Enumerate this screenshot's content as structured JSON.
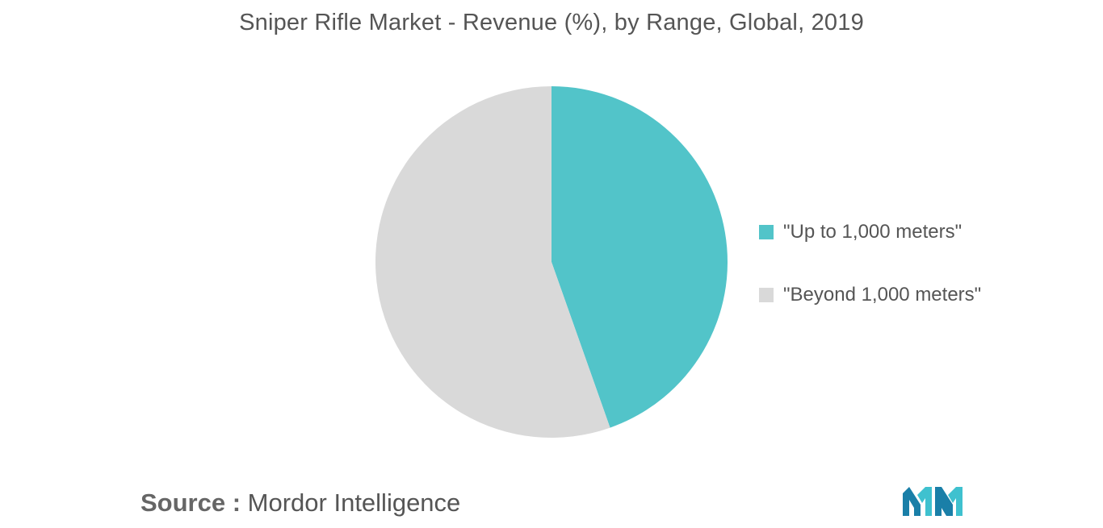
{
  "chart_data": {
    "type": "pie",
    "title": "Sniper Rifle Market - Revenue (%), by Range, Global, 2019",
    "slices": [
      {
        "label": "\"Up to 1,000 meters\"",
        "value": 44.6,
        "color": "#52c4c9"
      },
      {
        "label": "\"Beyond 1,000 meters\"",
        "value": 55.4,
        "color": "#d9d9d9"
      }
    ],
    "start_angle_deg": 0,
    "direction": "clockwise",
    "legend_position": "right"
  },
  "source": {
    "prefix": "Source :",
    "text": "Mordor Intelligence"
  },
  "logo": {
    "name": "mordor-intelligence-logo",
    "colors": [
      "#1a7fa8",
      "#3fc1cf"
    ]
  }
}
